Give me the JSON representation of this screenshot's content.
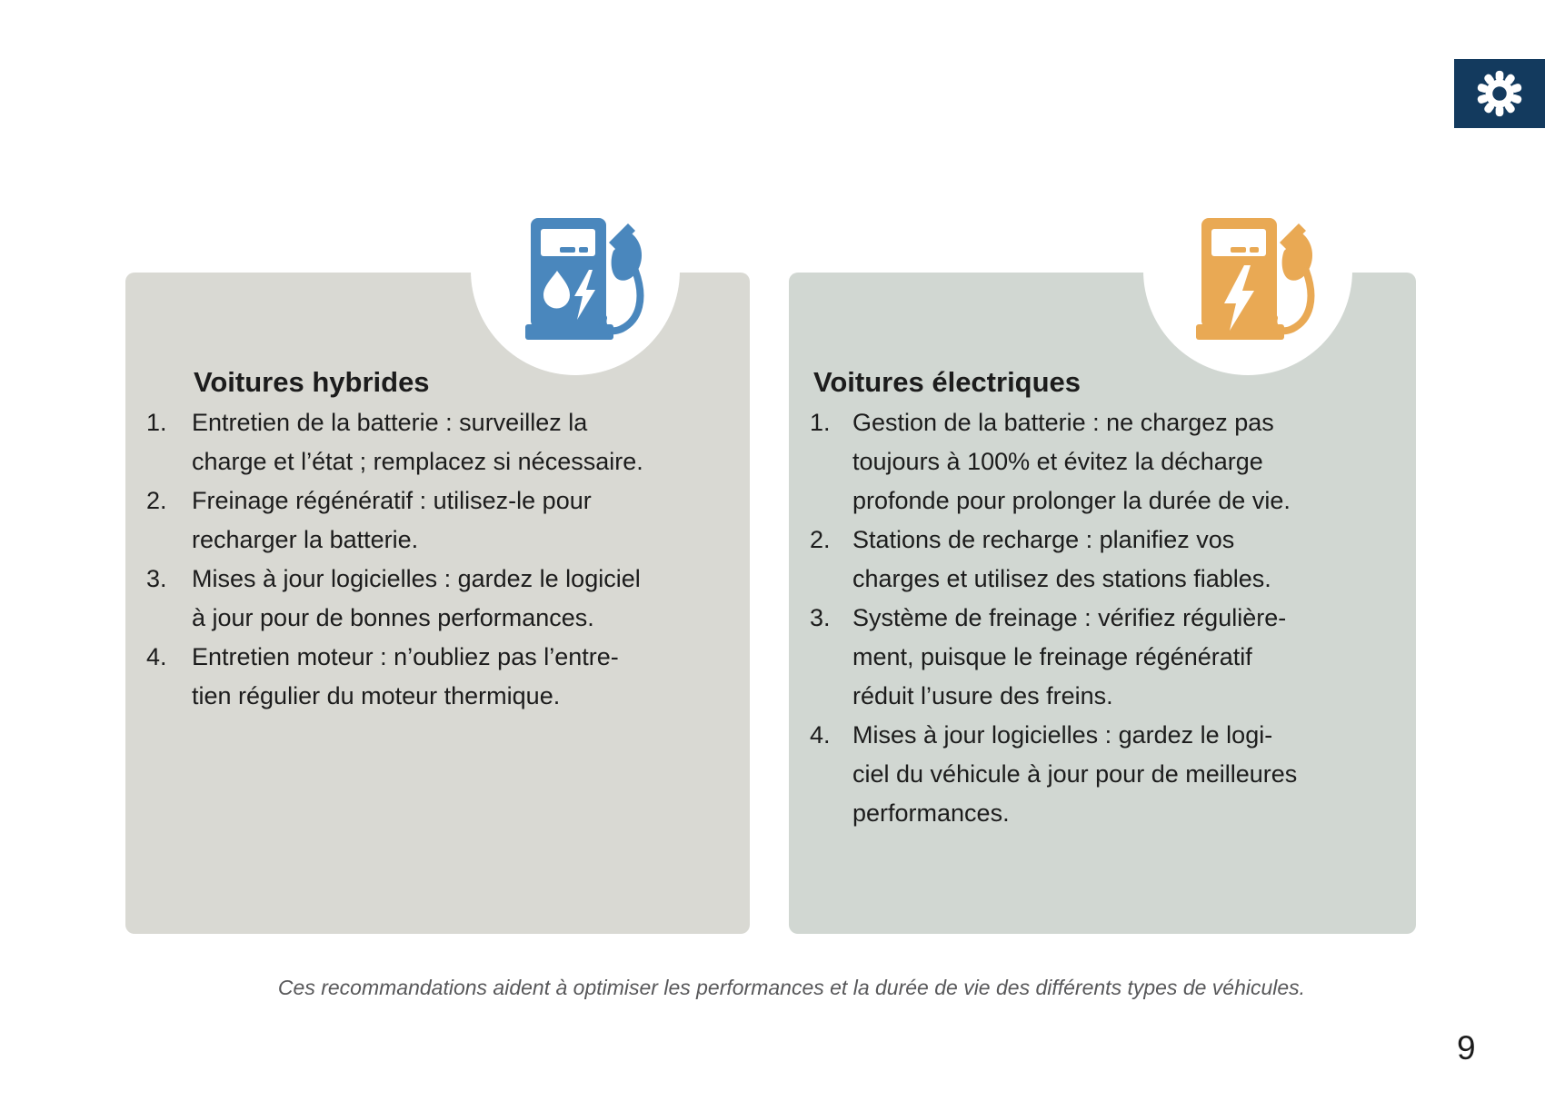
{
  "page": {
    "number": "9",
    "footer_note": "Ces recommandations aident à optimiser les performances et la durée de vie des différents types de véhicules."
  },
  "colors": {
    "navy": "#133a5e",
    "hybrid_blue": "#4a87bd",
    "electric_orange": "#e9a954",
    "card_left_bg": "#d9d9d3",
    "card_right_bg": "#d1d7d2",
    "text": "#1c1c1c",
    "footer_text": "#58585a"
  },
  "icons": {
    "settings": "gear-icon",
    "hybrid": "hybrid-fuel-pump-icon",
    "electric": "electric-charging-pump-icon"
  },
  "cards": [
    {
      "id": "hybrid",
      "title": "Voitures hybrides",
      "items": [
        {
          "number": "1.",
          "lines": [
            "Entretien de la batterie : surveillez la",
            "charge et l’état ; remplacez si nécessaire."
          ]
        },
        {
          "number": "2.",
          "lines": [
            "Freinage régénératif : utilisez-le pour",
            "recharger la batterie."
          ]
        },
        {
          "number": "3.",
          "lines": [
            "Mises à jour logicielles : gardez le logiciel",
            "à jour pour de bonnes performances."
          ]
        },
        {
          "number": "4.",
          "lines": [
            "Entretien moteur : n’oubliez pas l’entre-",
            "tien régulier du moteur thermique."
          ]
        }
      ]
    },
    {
      "id": "electric",
      "title": "Voitures électriques",
      "items": [
        {
          "number": "1.",
          "lines": [
            "Gestion de la batterie : ne chargez pas",
            "toujours à 100% et évitez la décharge",
            "profonde pour prolonger la durée de vie."
          ]
        },
        {
          "number": "2.",
          "lines": [
            "Stations de recharge : planifiez vos",
            "charges et utilisez des stations fiables."
          ]
        },
        {
          "number": "3.",
          "lines": [
            "Système de freinage : vérifiez régulière-",
            "ment, puisque le freinage régénératif",
            "réduit l’usure des freins."
          ]
        },
        {
          "number": "4.",
          "lines": [
            "Mises à jour logicielles : gardez le logi-",
            "ciel du véhicule à jour pour de meilleures",
            "performances."
          ]
        }
      ]
    }
  ]
}
